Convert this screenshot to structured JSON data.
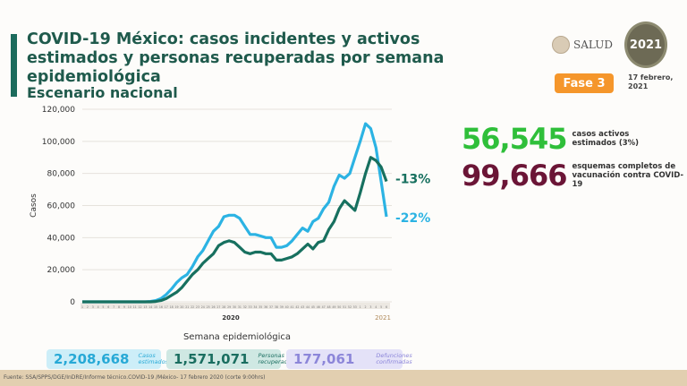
{
  "header": {
    "title": "COVID-19 México: casos incidentes y activos estimados y personas recuperadas por semana epidemiológica",
    "subtitle": "Escenario nacional",
    "logo_salud": "SALUD",
    "logo_2021": "2021",
    "phase": "Fase 3",
    "date": "17 febrero, 2021"
  },
  "stats": [
    {
      "value": "56,545",
      "label": "casos activos estimados (3%)",
      "color": "#2fbf3a"
    },
    {
      "value": "99,666",
      "label": "esquemas completos de vacunación contra COVID-19",
      "color": "#6b1536"
    }
  ],
  "summary": [
    {
      "value": "2,208,668",
      "label": "Casos estimados",
      "color": "#27a9d6",
      "bg": "#cdeef8"
    },
    {
      "value": "1,571,071",
      "label": "Personas recuperadas",
      "color": "#1a6e60",
      "bg": "#cfe8e3"
    },
    {
      "value": "177,061",
      "label": "Defunciones confirmadas",
      "color": "#8c86d9",
      "bg": "#e4e2f8"
    }
  ],
  "footer": "Fuente: SSA/SPPS/DGE/InDRE/Informe técnico.COVID-19 /México- 17 febrero 2020 (corte 9:00hrs)",
  "chart_data": {
    "type": "line",
    "xlabel": "Semana epidemiológica",
    "ylabel": "Casos",
    "ylim": [
      0,
      120000
    ],
    "yticks": [
      0,
      20000,
      40000,
      60000,
      80000,
      100000,
      120000
    ],
    "ytick_labels": [
      "0",
      "20,000",
      "40,000",
      "60,000",
      "80,000",
      "100,000",
      "120,000"
    ],
    "year_labels": [
      "2020",
      "2021"
    ],
    "weeks": [
      1,
      2,
      3,
      4,
      5,
      6,
      7,
      8,
      9,
      10,
      11,
      12,
      13,
      14,
      15,
      16,
      17,
      18,
      19,
      20,
      21,
      22,
      23,
      24,
      25,
      26,
      27,
      28,
      29,
      30,
      31,
      32,
      33,
      34,
      35,
      36,
      37,
      38,
      39,
      40,
      41,
      42,
      43,
      44,
      45,
      46,
      47,
      48,
      49,
      50,
      51,
      52,
      53,
      1,
      2,
      3,
      4,
      5,
      6
    ],
    "grid": true,
    "series": [
      {
        "color": "#2cb3e3",
        "end_label": "-22%",
        "values": [
          0,
          0,
          0,
          0,
          0,
          0,
          0,
          0,
          0,
          0,
          0,
          0,
          0,
          200,
          800,
          2000,
          4500,
          8000,
          12000,
          15000,
          17000,
          22000,
          28000,
          32000,
          38000,
          44000,
          47000,
          53000,
          54000,
          54000,
          52000,
          47000,
          42000,
          42000,
          41000,
          40000,
          40000,
          34000,
          34000,
          35000,
          38000,
          42000,
          46000,
          44000,
          50000,
          52000,
          58000,
          62000,
          72000,
          79000,
          77000,
          80000,
          90000,
          100000,
          111000,
          108000,
          96000,
          75000,
          53000
        ]
      },
      {
        "color": "#17705f",
        "end_label": "-13%",
        "values": [
          0,
          0,
          0,
          0,
          0,
          0,
          0,
          0,
          0,
          0,
          0,
          0,
          0,
          0,
          200,
          800,
          2000,
          4000,
          6000,
          9000,
          13000,
          17000,
          20000,
          24000,
          27000,
          30000,
          35000,
          37000,
          38000,
          37000,
          34000,
          31000,
          30000,
          31000,
          31000,
          30000,
          30000,
          26000,
          26000,
          27000,
          28000,
          30000,
          33000,
          36000,
          33000,
          37000,
          38000,
          45000,
          50000,
          58000,
          63000,
          60000,
          57000,
          68000,
          80000,
          90000,
          88000,
          84000,
          75000
        ]
      }
    ]
  }
}
